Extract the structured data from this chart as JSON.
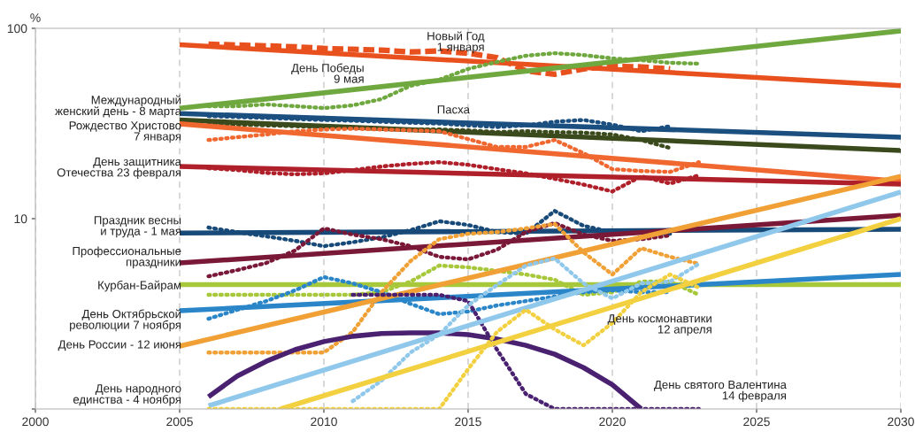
{
  "chart_data": {
    "type": "line",
    "ylabel": "%",
    "log": "y",
    "xlim": [
      2000,
      2030
    ],
    "xticks": [
      2000,
      2005,
      2010,
      2015,
      2020,
      2025,
      2030
    ],
    "ylim": [
      1,
      100
    ],
    "yticks": [
      {
        "value": 1,
        "label": null
      },
      10,
      100
    ],
    "grid": "x",
    "legend": false,
    "marker": "none",
    "series": [
      {
        "color": "#e8501e",
        "line_style": "dashed",
        "x": [
          2006,
          2007,
          2008,
          2009,
          2010,
          2011,
          2012,
          2013,
          2014,
          2015,
          2016,
          2017,
          2018,
          2019,
          2020,
          2021,
          2022
        ],
        "values": [
          82.5,
          81.7,
          80.9,
          80,
          78.4,
          77.6,
          76.8,
          75.2,
          76,
          74,
          70.2,
          59.8,
          57.4,
          61.2,
          63.3,
          62.7,
          61.2
        ]
      },
      {
        "color": "#e8501e",
        "line_style": "solid",
        "x": [
          2005,
          2030
        ],
        "values": [
          82,
          50
        ]
      },
      {
        "color": "#70a840",
        "line_style": "dotted",
        "x": [
          2006,
          2007,
          2008,
          2009,
          2010,
          2011,
          2012,
          2013,
          2014,
          2015,
          2016,
          2017,
          2018,
          2019,
          2020,
          2021,
          2022,
          2023
        ],
        "values": [
          39,
          39,
          39.8,
          39,
          38.1,
          39.4,
          42.5,
          49.9,
          53.7,
          61.2,
          66.6,
          71.8,
          74,
          72.4,
          69.5,
          68,
          65.9,
          65.2
        ]
      },
      {
        "color": "#70a840",
        "line_style": "solid",
        "x": [
          2005,
          2030
        ],
        "values": [
          38,
          97
        ]
      },
      {
        "color": "#1a4f80",
        "line_style": "dotted",
        "x": [
          2006,
          2007,
          2008,
          2009,
          2010,
          2011,
          2012,
          2013,
          2014,
          2015,
          2016,
          2017,
          2018,
          2019,
          2020,
          2021,
          2022
        ],
        "values": [
          34.6,
          34.2,
          33.8,
          33.4,
          33,
          32.7,
          32.3,
          31.9,
          31.6,
          30.9,
          30.3,
          30.9,
          32.3,
          33,
          31.2,
          28.8,
          30.6
        ]
      },
      {
        "color": "#1a4f80",
        "line_style": "solid",
        "x": [
          2005,
          2030
        ],
        "values": [
          35.7,
          26.8
        ]
      },
      {
        "color": "#3b4a1c",
        "line_style": "dotted",
        "x": [
          2006,
          2007,
          2008,
          2009,
          2010,
          2011,
          2012,
          2013,
          2014,
          2015,
          2016,
          2017,
          2018,
          2019,
          2020,
          2021,
          2022
        ],
        "values": [
          31.2,
          31.2,
          30.9,
          30.6,
          30.3,
          30,
          29.6,
          29.4,
          29.4,
          29.1,
          28.5,
          28.8,
          28.5,
          28.3,
          27.7,
          25.9,
          23.5
        ]
      },
      {
        "color": "#3b4a1c",
        "line_style": "solid",
        "x": [
          2005,
          2030
        ],
        "values": [
          33,
          22.8
        ]
      },
      {
        "color": "#f06830",
        "line_style": "dotted",
        "x": [
          2006,
          2007,
          2008,
          2009,
          2010,
          2011,
          2012,
          2013,
          2014,
          2015,
          2016,
          2017,
          2018,
          2019,
          2020,
          2021,
          2022,
          2023
        ],
        "values": [
          25.9,
          26.8,
          27.7,
          28.8,
          29.4,
          29.7,
          29.4,
          29.1,
          28.8,
          26.2,
          23.8,
          23.8,
          25.9,
          22.1,
          18.2,
          17.8,
          17.6,
          19.8
        ]
      },
      {
        "color": "#f06830",
        "line_style": "solid",
        "x": [
          2005,
          2030
        ],
        "values": [
          31.5,
          15.7
        ]
      },
      {
        "color": "#b0202a",
        "line_style": "dotted",
        "x": [
          2006,
          2007,
          2008,
          2009,
          2010,
          2011,
          2012,
          2013,
          2014,
          2015,
          2016,
          2017,
          2018,
          2019,
          2020,
          2021,
          2022,
          2023
        ],
        "values": [
          18.4,
          18,
          17.4,
          17.1,
          17.3,
          18,
          18.8,
          19.4,
          19.8,
          19.2,
          18.2,
          17.3,
          16.2,
          15.1,
          13.9,
          16.7,
          15.3,
          16.9
        ]
      },
      {
        "color": "#b0202a",
        "line_style": "solid",
        "x": [
          2005,
          2030
        ],
        "values": [
          18.8,
          15.2
        ]
      },
      {
        "color": "#174a78",
        "line_style": "dotted",
        "x": [
          2006,
          2007,
          2008,
          2009,
          2010,
          2011,
          2012,
          2013,
          2014,
          2015,
          2016,
          2017,
          2018,
          2019,
          2020,
          2021,
          2022
        ],
        "values": [
          8.98,
          8.5,
          8.07,
          7.65,
          7.17,
          7.52,
          7.98,
          8.7,
          9.69,
          9.27,
          8.5,
          8.33,
          10.98,
          9.17,
          8.5,
          8.5,
          8.33
        ]
      },
      {
        "color": "#174a78",
        "line_style": "solid",
        "x": [
          2005,
          2030
        ],
        "values": [
          8.4,
          8.8
        ]
      },
      {
        "color": "#7a1838",
        "line_style": "dotted",
        "x": [
          2006,
          2007,
          2008,
          2009,
          2010,
          2011,
          2012,
          2013,
          2014,
          2015,
          2016,
          2017,
          2018,
          2019,
          2020,
          2021,
          2022
        ],
        "values": [
          4.98,
          5.37,
          5.85,
          6.8,
          8.89,
          8.25,
          7.8,
          7.17,
          6.3,
          6.11,
          6.87,
          8.5,
          9.48,
          8.25,
          7.65,
          7.8,
          8.16
        ]
      },
      {
        "color": "#7a1838",
        "line_style": "solid",
        "x": [
          2005,
          2030
        ],
        "values": [
          5.85,
          10.4
        ]
      },
      {
        "color": "#a8c83c",
        "line_style": "dotted",
        "x": [
          2006,
          2007,
          2008,
          2009,
          2010,
          2011,
          2012,
          2013,
          2014,
          2015,
          2016,
          2017,
          2018,
          2019,
          2020,
          2021,
          2022,
          2023
        ],
        "values": [
          3.98,
          3.98,
          3.98,
          3.98,
          3.98,
          3.98,
          4.11,
          4.67,
          5.67,
          5.55,
          5.32,
          5.09,
          4.78,
          3.98,
          4.11,
          4.67,
          4.67,
          3.98
        ]
      },
      {
        "color": "#a8c83c",
        "line_style": "solid",
        "x": [
          2005,
          2030
        ],
        "values": [
          4.5,
          4.5
        ]
      },
      {
        "color": "#2a86c8",
        "line_style": "dotted",
        "x": [
          2006,
          2007,
          2008,
          2009,
          2010,
          2011,
          2012,
          2013,
          2014,
          2015,
          2016,
          2017,
          2018,
          2019,
          2020,
          2021,
          2022
        ],
        "values": [
          2.98,
          3.32,
          3.69,
          4.2,
          4.93,
          4.57,
          4.11,
          3.57,
          3.15,
          3.25,
          3.5,
          3.69,
          3.9,
          4.11,
          4.2,
          4.11,
          4.11
        ]
      },
      {
        "color": "#2a86c8",
        "line_style": "solid",
        "x": [
          2005,
          2030
        ],
        "values": [
          3.28,
          5.09
        ]
      },
      {
        "color": "#f0a035",
        "line_style": "dotted",
        "x": [
          2006,
          2007,
          2008,
          2009,
          2010,
          2011,
          2012,
          2013,
          2014,
          2015,
          2016,
          2017,
          2018,
          2019,
          2020,
          2021,
          2022,
          2023
        ],
        "values": [
          1.98,
          1.98,
          1.98,
          1.98,
          1.98,
          2.54,
          4.11,
          5.98,
          7.8,
          8.33,
          8.5,
          8.89,
          9.38,
          6.65,
          5.09,
          7,
          6.3,
          5.79
        ]
      },
      {
        "color": "#f0a035",
        "line_style": "solid",
        "x": [
          2005,
          2030
        ],
        "values": [
          2.14,
          16.7
        ]
      },
      {
        "color": "#4a2070",
        "line_style": "solid",
        "x": [
          2006,
          2007,
          2008,
          2009,
          2010,
          2011,
          2012,
          2013,
          2014,
          2015,
          2016,
          2017,
          2018,
          2019,
          2020,
          2021
        ],
        "values": [
          1.16,
          1.49,
          1.78,
          2.05,
          2.26,
          2.41,
          2.49,
          2.51,
          2.51,
          2.46,
          2.33,
          2.16,
          1.94,
          1.65,
          1.34,
          1
        ]
      },
      {
        "color": "#4a2070",
        "line_style": "dotted",
        "x": [
          2011,
          2012,
          2013,
          2014,
          2015,
          2016,
          2017,
          2018,
          2019,
          2020,
          2021,
          2022,
          2023
        ],
        "values": [
          3.98,
          3.98,
          3.98,
          3.98,
          3.69,
          2.05,
          1.2,
          1,
          1,
          1,
          1,
          1,
          1
        ]
      },
      {
        "color": "#90c8ec",
        "line_style": "dotted",
        "x": [
          2011,
          2012,
          2013,
          2014,
          2015,
          2016,
          2017,
          2018,
          2019,
          2020,
          2021,
          2022,
          2023
        ],
        "values": [
          1.1,
          1.41,
          1.98,
          2.46,
          3.5,
          4.48,
          5.67,
          6.18,
          4.57,
          3.81,
          4.57,
          4.67,
          5.79
        ]
      },
      {
        "color": "#90c8ec",
        "line_style": "solid",
        "x": [
          2006,
          2030
        ],
        "values": [
          1.04,
          13.8
        ]
      },
      {
        "color": "#f2d040",
        "line_style": "dotted",
        "x": [
          2006,
          2007,
          2008,
          2009,
          2010,
          2011,
          2012,
          2013,
          2014,
          2015,
          2016,
          2017,
          2018,
          2019,
          2020,
          2021,
          2022,
          2023
        ],
        "values": [
          1,
          1,
          1,
          1,
          1,
          1,
          1,
          1,
          1,
          1.62,
          2.54,
          3.32,
          2.62,
          2.16,
          2.83,
          4.11,
          5.09,
          4.34
        ]
      },
      {
        "color": "#f2d040",
        "line_style": "solid",
        "x": [
          2008.5,
          2030
        ],
        "values": [
          1,
          10
        ]
      }
    ],
    "annotations": [
      "Международный\nженский день - 8 марта",
      "Рождество Христово\n7 января",
      "День защитника\nОтечества 23 февраля",
      "Праздник весны\nи труда - 1 мая",
      "Профессиональные\nпраздники",
      "Курбан-Байрам",
      "День Октябрьской\nреволюции 7 ноября",
      "День России - 12 июня",
      "День народного\nединства - 4 ноября",
      "Новый Год\n1 января",
      "День Победы\n9 мая",
      "Пасха",
      "День космонавтики\n12 апреля",
      "День святого Валентина\n14 февраля"
    ]
  }
}
